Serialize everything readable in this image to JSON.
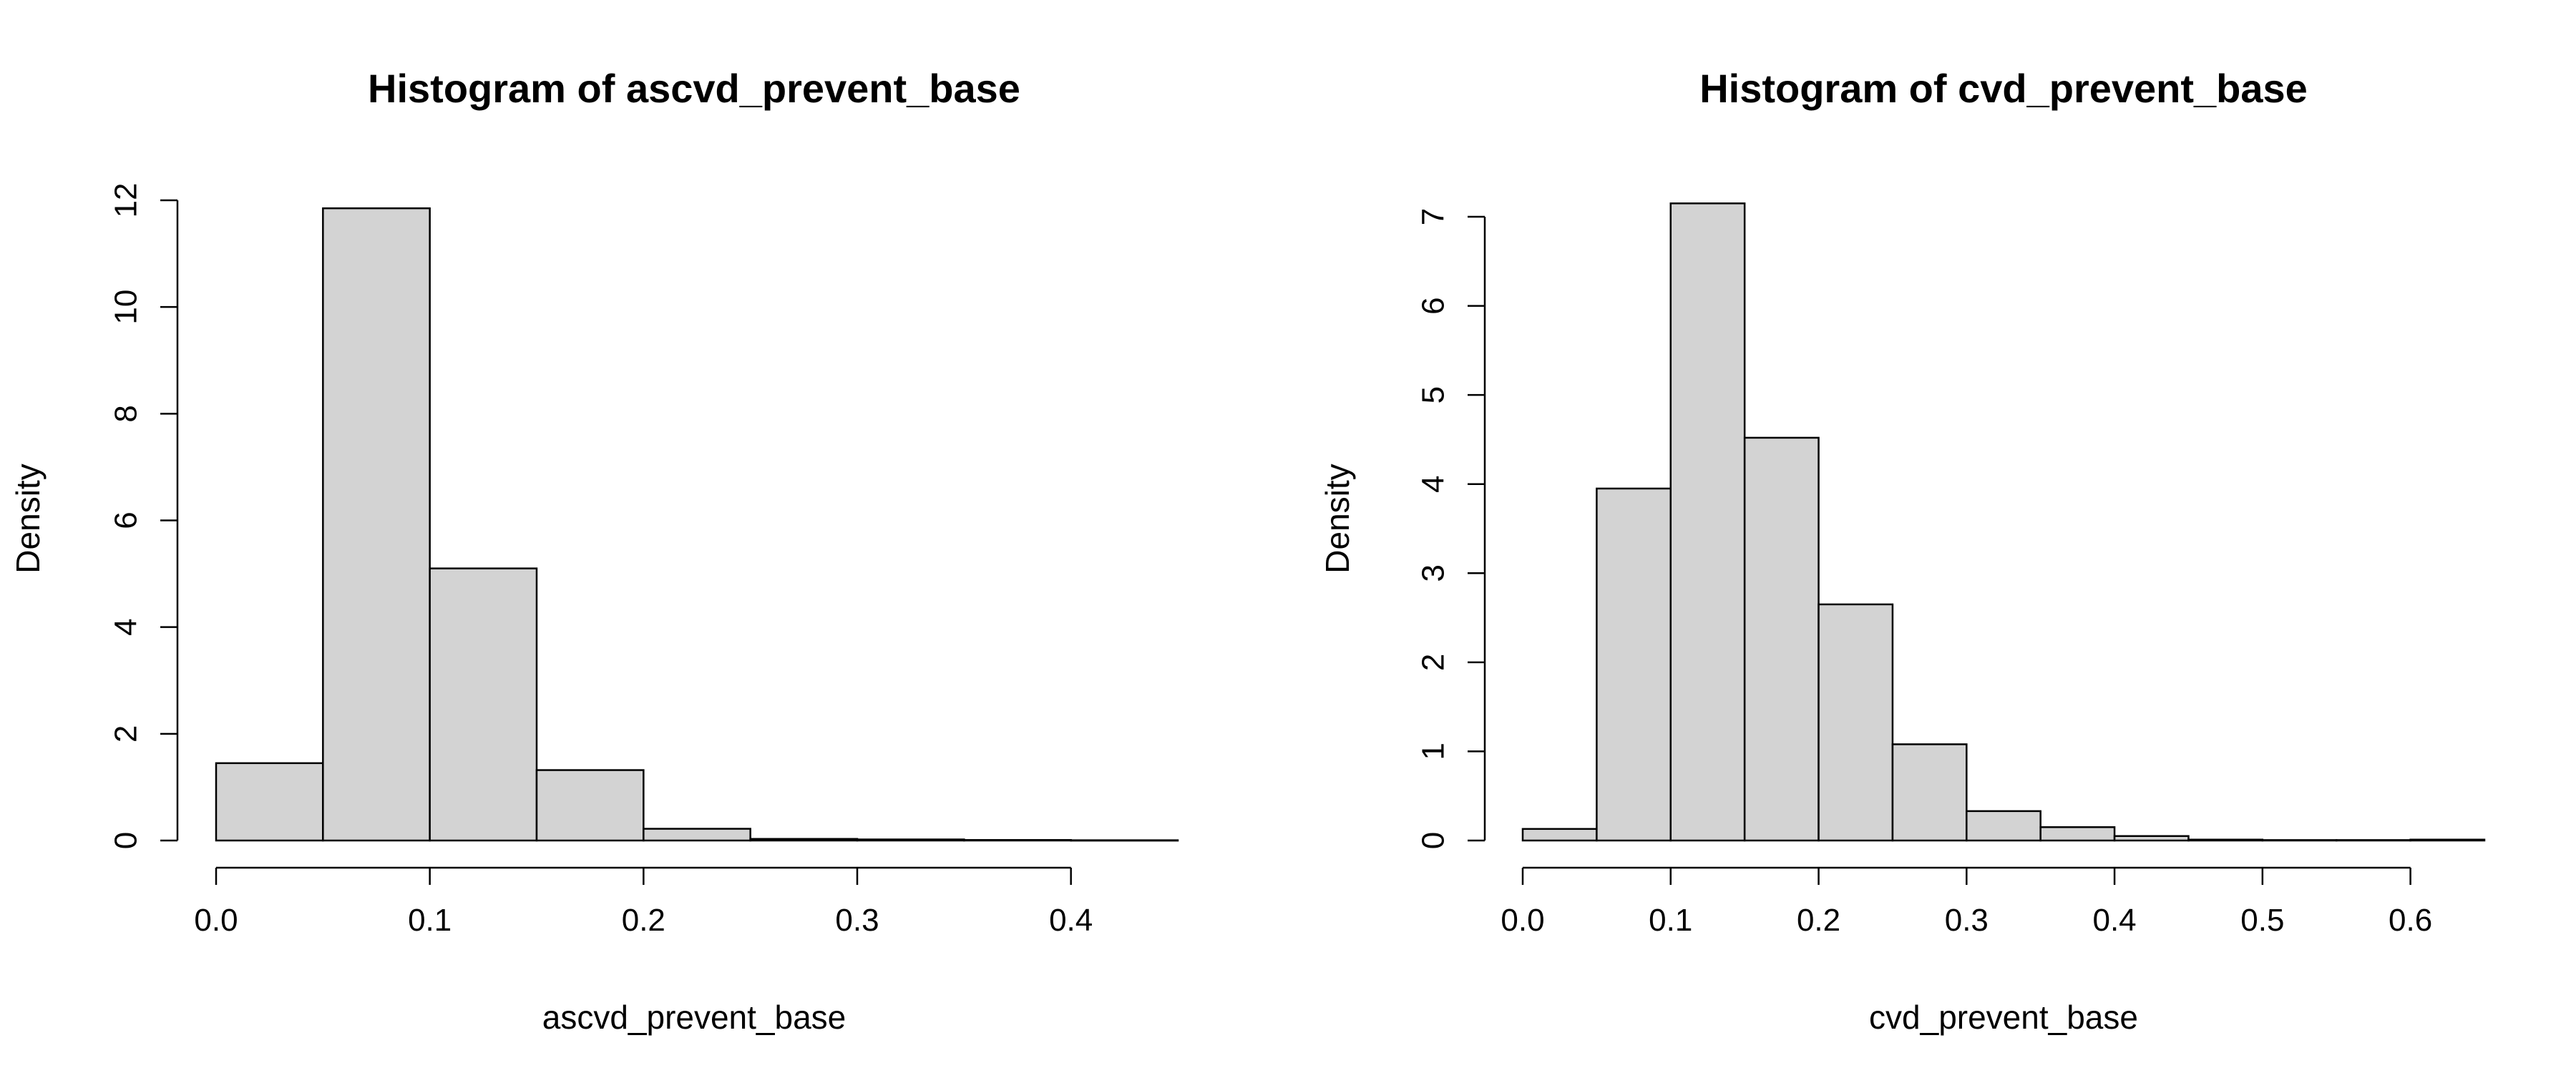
{
  "chart_data": [
    {
      "type": "bar",
      "title": "Histogram of ascvd_prevent_base",
      "xlabel": "ascvd_prevent_base",
      "ylabel": "Density",
      "bin_edges": [
        0.0,
        0.05,
        0.1,
        0.15,
        0.2,
        0.25,
        0.3,
        0.35,
        0.4,
        0.45
      ],
      "values": [
        1.45,
        11.85,
        5.1,
        1.32,
        0.22,
        0.03,
        0.02,
        0.01,
        0.005
      ],
      "xticks": [
        "0.0",
        "0.1",
        "0.2",
        "0.3",
        "0.4"
      ],
      "xtick_values": [
        0.0,
        0.1,
        0.2,
        0.3,
        0.4
      ],
      "yticks": [
        "0",
        "2",
        "4",
        "6",
        "8",
        "10",
        "12"
      ],
      "ytick_values": [
        0,
        2,
        4,
        6,
        8,
        10,
        12
      ],
      "xlim": [
        0.0,
        0.45
      ],
      "ylim": [
        0,
        12
      ],
      "grid": false,
      "legend": "none"
    },
    {
      "type": "bar",
      "title": "Histogram of cvd_prevent_base",
      "xlabel": "cvd_prevent_base",
      "ylabel": "Density",
      "bin_edges": [
        0.0,
        0.05,
        0.1,
        0.15,
        0.2,
        0.25,
        0.3,
        0.35,
        0.4,
        0.45,
        0.5,
        0.55,
        0.6,
        0.65
      ],
      "values": [
        0.13,
        3.95,
        7.15,
        4.52,
        2.65,
        1.08,
        0.33,
        0.15,
        0.05,
        0.01,
        0.005,
        0.005,
        0.01
      ],
      "xticks": [
        "0.0",
        "0.1",
        "0.2",
        "0.3",
        "0.4",
        "0.5",
        "0.6"
      ],
      "xtick_values": [
        0.0,
        0.1,
        0.2,
        0.3,
        0.4,
        0.5,
        0.6
      ],
      "yticks": [
        "0",
        "1",
        "2",
        "3",
        "4",
        "5",
        "6",
        "7"
      ],
      "ytick_values": [
        0,
        1,
        2,
        3,
        4,
        5,
        6,
        7
      ],
      "xlim": [
        0.0,
        0.65
      ],
      "ylim": [
        0,
        7
      ],
      "grid": false,
      "legend": "none"
    }
  ]
}
